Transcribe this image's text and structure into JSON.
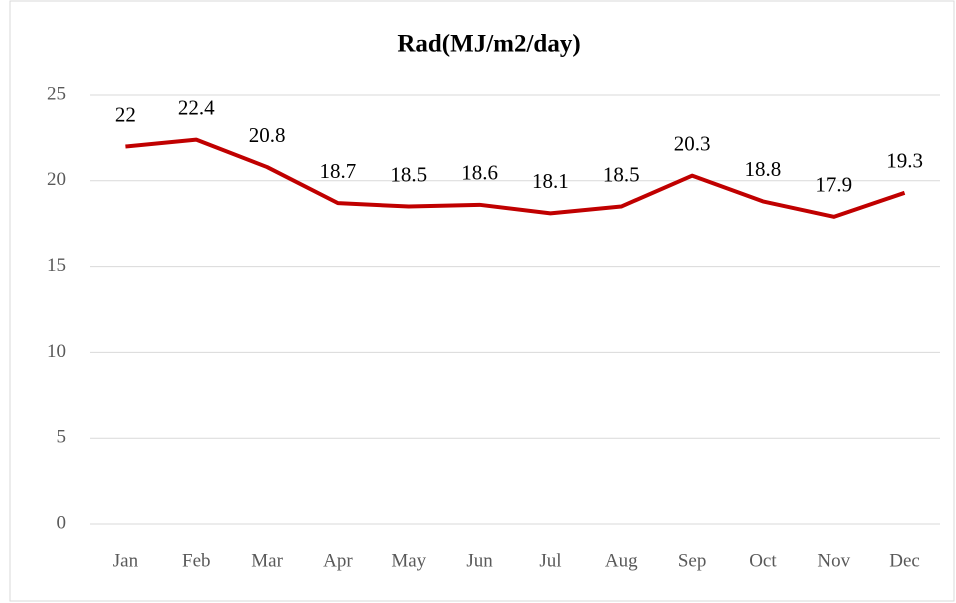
{
  "chart_data": {
    "type": "line",
    "title": "Rad(MJ/m2/day)",
    "categories": [
      "Jan",
      "Feb",
      "Mar",
      "Apr",
      "May",
      "Jun",
      "Jul",
      "Aug",
      "Sep",
      "Oct",
      "Nov",
      "Dec"
    ],
    "series": [
      {
        "name": "Rad(MJ/m2/day)",
        "color": "#c00000",
        "values": [
          22,
          22.4,
          20.8,
          18.7,
          18.5,
          18.6,
          18.1,
          18.5,
          20.3,
          18.8,
          17.9,
          19.3
        ]
      }
    ],
    "ylim": [
      0,
      25
    ],
    "yticks": [
      0,
      5,
      10,
      15,
      20,
      25
    ],
    "grid": true
  }
}
